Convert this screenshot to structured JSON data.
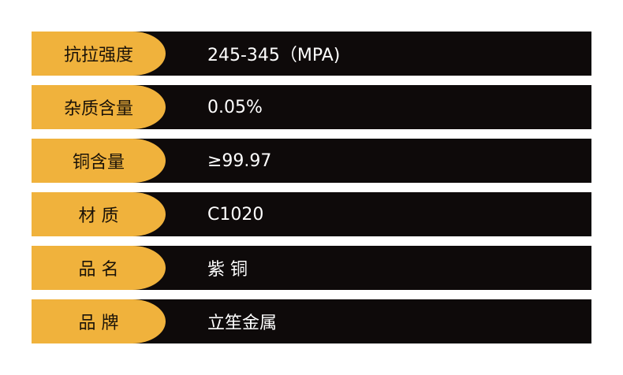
{
  "table": {
    "rows": [
      [
        "抗拉强度",
        "245-345（MPA)"
      ],
      [
        "杂质含量",
        "0.05%"
      ],
      [
        "铜含量",
        "≥99.97"
      ],
      [
        "材 质",
        "C1020"
      ],
      [
        "品 名",
        "紫 铜"
      ],
      [
        "品 牌",
        "立笙金属"
      ]
    ]
  }
}
